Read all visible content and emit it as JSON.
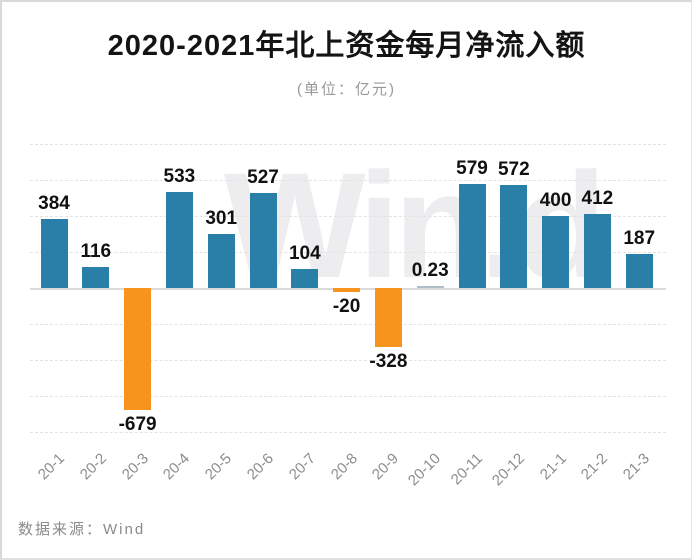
{
  "page": {
    "subtitle": "(单位：亿元)",
    "source": "数据来源：Wind",
    "watermark": "Win.d"
  },
  "chart_data": {
    "type": "bar",
    "title": "2020-2021年北上资金每月净流入额",
    "subtitle": "(单位：亿元)",
    "unit": "亿元",
    "categories": [
      "20-1",
      "20-2",
      "20-3",
      "20-4",
      "20-5",
      "20-6",
      "20-7",
      "20-8",
      "20-9",
      "20-10",
      "20-11",
      "20-12",
      "21-1",
      "21-2",
      "21-3"
    ],
    "values": [
      384,
      116,
      -679,
      533,
      301,
      527,
      104,
      -20,
      -328,
      0.23,
      579,
      572,
      400,
      412,
      187
    ],
    "data_labels": [
      "384",
      "116",
      "-679",
      "533",
      "301",
      "527",
      "104",
      "-20",
      "-328",
      "0.23",
      "579",
      "572",
      "400",
      "412",
      "187"
    ],
    "xlabel": "",
    "ylabel": "",
    "ylim": [
      -800,
      800
    ],
    "gridline_step": 200,
    "grid": "dashed-horizontal",
    "legend": "none",
    "colors": {
      "positive_bar": "#2a7fa9",
      "negative_bar": "#f7941e",
      "near_zero_bar": "#aebfc9",
      "value_label": "#111111",
      "axis_label": "#8c8c8c",
      "gridline": "#e3e3e3"
    },
    "source_text": "数据来源：Wind",
    "watermark_text": "Win.d"
  }
}
